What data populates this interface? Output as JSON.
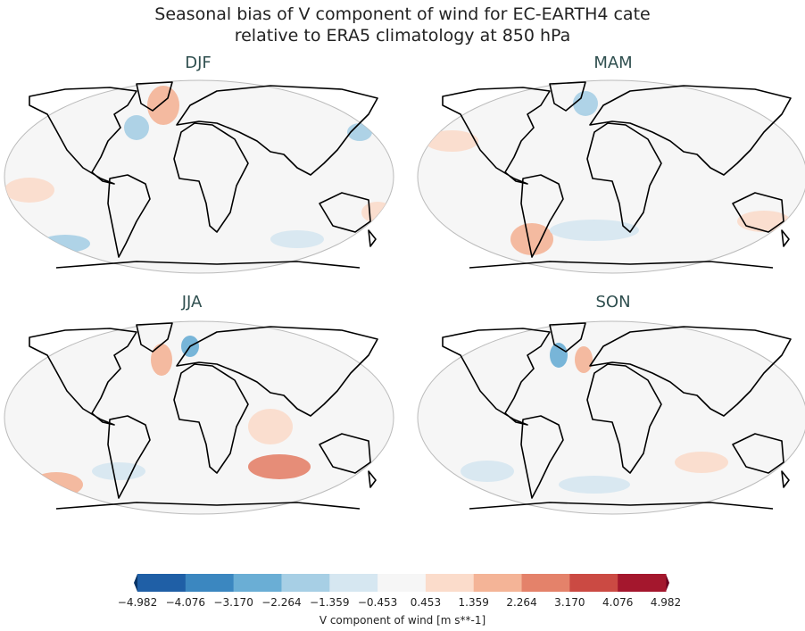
{
  "title": {
    "line1": "Seasonal bias of V component of wind for EC-EARTH4 cate",
    "line2": "relative to ERA5 climatology at 850 hPa"
  },
  "panels": [
    {
      "label": "DJF"
    },
    {
      "label": "MAM"
    },
    {
      "label": "JJA"
    },
    {
      "label": "SON"
    }
  ],
  "colorbar": {
    "label": "V component of wind [m s**-1]",
    "ticks": [
      "−4.982",
      "−4.076",
      "−3.170",
      "−2.264",
      "−1.359",
      "−0.453",
      "0.453",
      "1.359",
      "2.264",
      "3.170",
      "4.076",
      "4.982"
    ],
    "colors": [
      "#1f5fa6",
      "#3b87c0",
      "#6aaed5",
      "#a7cfe5",
      "#d6e7f1",
      "#f6f6f6",
      "#fbdccb",
      "#f4b497",
      "#e4826a",
      "#cb4a43",
      "#a4172d"
    ],
    "under_color": "#093466",
    "over_color": "#67001f"
  }
}
